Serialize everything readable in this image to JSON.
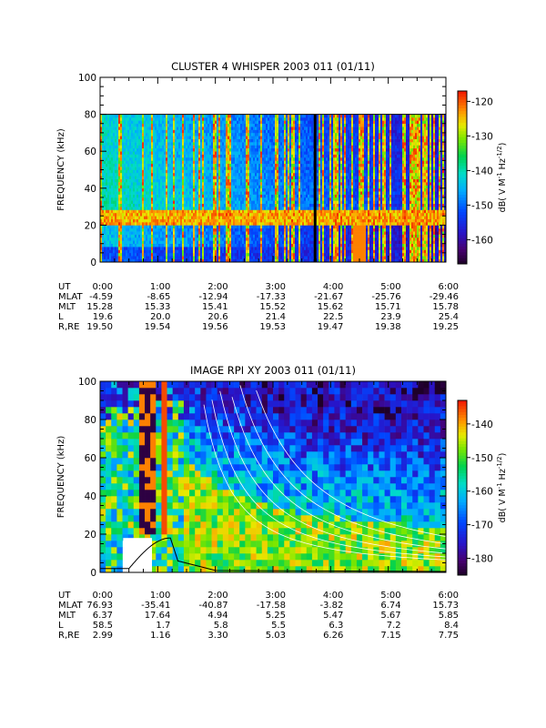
{
  "chart_data": [
    {
      "type": "heatmap",
      "title": "CLUSTER 4 WHISPER 2003 011 (01/11)",
      "ylabel": "FREQUENCY (kHz)",
      "ylim": [
        0,
        100
      ],
      "yticks": [
        "0",
        "20",
        "40",
        "60",
        "80",
        "100"
      ],
      "data_ylim": [
        0,
        80
      ],
      "xlim_ut": [
        "0:00",
        "6:00"
      ],
      "colorbar": {
        "label": "dB( V M^-1 Hz^-1/2 )",
        "label_parts": {
          "base": "dB( V M",
          "exp1": "-1",
          "mid": " Hz",
          "exp2": "-1/2",
          "end": ")"
        },
        "range": [
          -167,
          -117
        ],
        "ticks": [
          "-120",
          "-130",
          "-140",
          "-150",
          "-160"
        ]
      },
      "ephemeris": {
        "labels": [
          "UT",
          "MLAT",
          "MLT",
          "L",
          "R,RE"
        ],
        "columns": [
          [
            "0:00",
            "-4.59",
            "15.28",
            "19.6",
            "19.50"
          ],
          [
            "1:00",
            "-8.65",
            "15.33",
            "20.0",
            "19.54"
          ],
          [
            "2:00",
            "-12.94",
            "15.41",
            "20.6",
            "19.56"
          ],
          [
            "3:00",
            "-17.33",
            "15.52",
            "21.4",
            "19.53"
          ],
          [
            "4:00",
            "-21.67",
            "15.62",
            "22.5",
            "19.47"
          ],
          [
            "5:00",
            "-25.76",
            "15.71",
            "23.9",
            "19.38"
          ],
          [
            "6:00",
            "-29.46",
            "15.78",
            "25.4",
            "19.25"
          ]
        ]
      },
      "features": {
        "emission_band_khz": [
          22,
          26
        ],
        "strong_vertical_line_hour": 3.73
      }
    },
    {
      "type": "heatmap",
      "title": "IMAGE RPI XY 2003 011 (01/11)",
      "ylabel": "FREQUENCY (kHz)",
      "ylim": [
        0,
        100
      ],
      "yticks": [
        "0",
        "20",
        "40",
        "60",
        "80",
        "100"
      ],
      "xlim_ut": [
        "0:00",
        "6:00"
      ],
      "colorbar": {
        "label": "dB( V M^-1 Hz^-1/2 )",
        "label_parts": {
          "base": "dB( V M",
          "exp1": "-1",
          "mid": " Hz",
          "exp2": "-1/2",
          "end": ")"
        },
        "range": [
          -185,
          -133
        ],
        "ticks": [
          "-140",
          "-150",
          "-160",
          "-170",
          "-180"
        ]
      },
      "ephemeris": {
        "labels": [
          "UT",
          "MLAT",
          "MLT",
          "L",
          "R,RE"
        ],
        "columns": [
          [
            "0:00",
            "76.93",
            "6.37",
            "58.5",
            "2.99"
          ],
          [
            "1:00",
            "-35.41",
            "17.64",
            "1.7",
            "1.16"
          ],
          [
            "2:00",
            "-40.87",
            "4.94",
            "5.8",
            "3.30"
          ],
          [
            "3:00",
            "-17.58",
            "5.25",
            "5.5",
            "5.03"
          ],
          [
            "4:00",
            "-3.82",
            "5.47",
            "6.3",
            "6.26"
          ],
          [
            "5:00",
            "6.74",
            "5.67",
            "7.2",
            "7.15"
          ],
          [
            "6:00",
            "15.73",
            "5.85",
            "8.4",
            "7.75"
          ]
        ]
      },
      "features": {
        "data_gap_hours": [
          0.4,
          0.9
        ],
        "data_gap_khz": [
          0,
          18
        ]
      }
    }
  ]
}
